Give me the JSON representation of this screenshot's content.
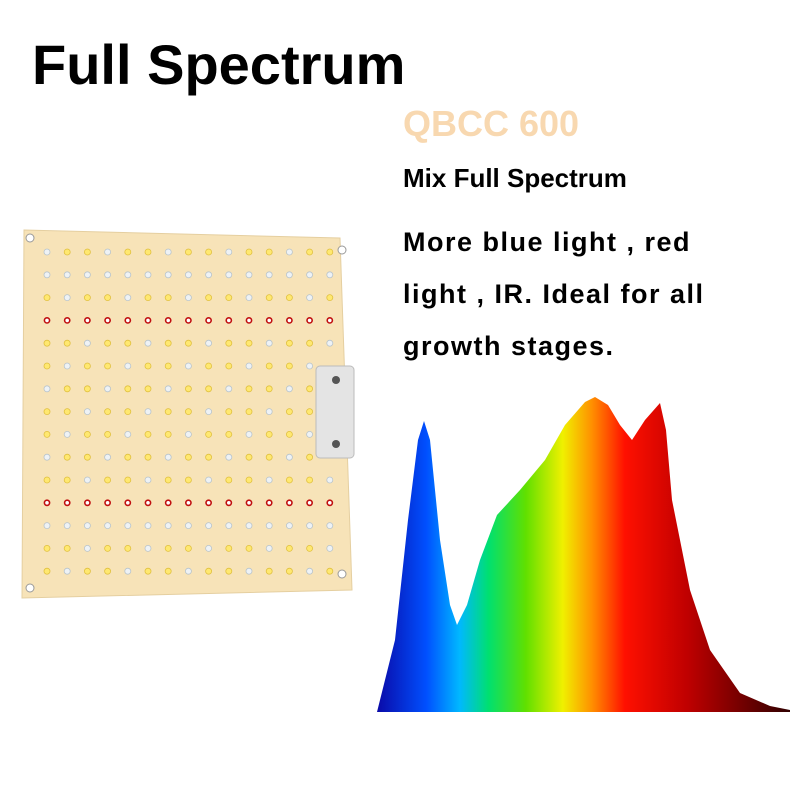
{
  "header": {
    "title": "Full Spectrum"
  },
  "product": {
    "model": "QBCC 600",
    "subtitle": "Mix Full Spectrum",
    "description": [
      "More blue light , red",
      "light , IR. Ideal for all",
      "growth stages."
    ]
  }
}
